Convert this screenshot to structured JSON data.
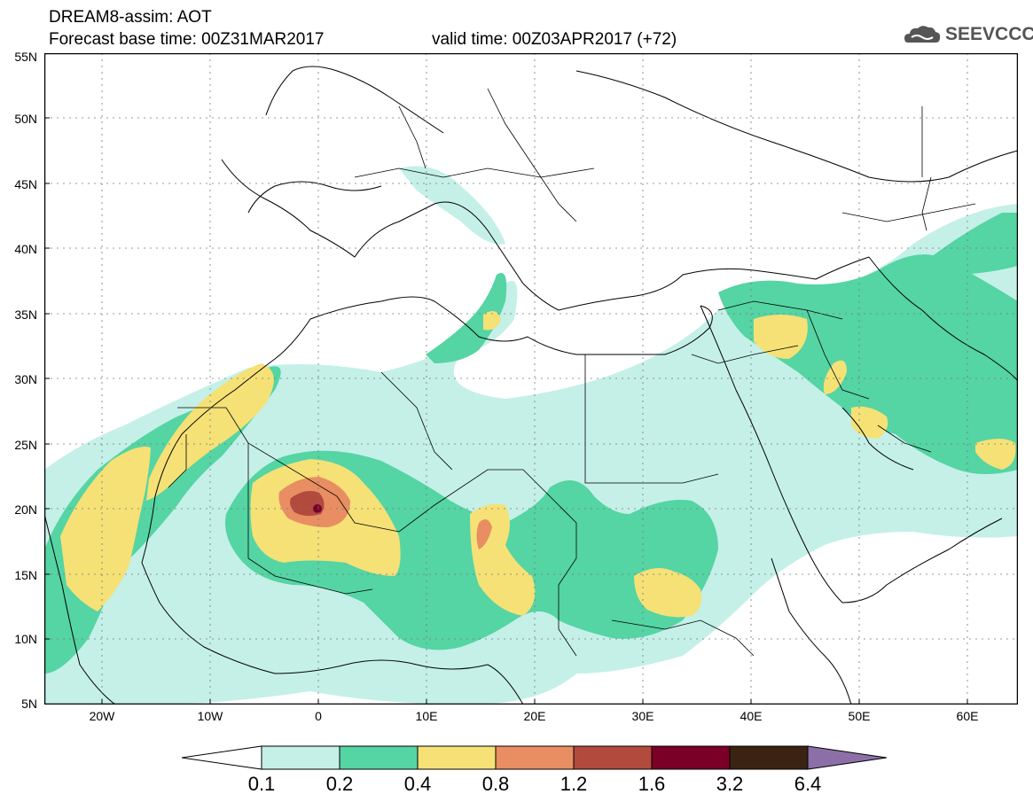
{
  "header": {
    "line1": "DREAM8-assim: AOT",
    "line2": "Forecast base time: 00Z31MAR2017",
    "valid": "valid time: 00Z03APR2017 (+72)",
    "logo_text": "SEEVCCC"
  },
  "map": {
    "lat_labels": [
      "55N",
      "50N",
      "45N",
      "40N",
      "35N",
      "30N",
      "25N",
      "20N",
      "15N",
      "10N",
      "5N"
    ],
    "lon_labels": [
      "20W",
      "10W",
      "0",
      "10E",
      "20E",
      "30E",
      "40E",
      "50E",
      "60E"
    ]
  },
  "colorbar": {
    "labels": [
      "0.1",
      "0.2",
      "0.4",
      "0.8",
      "1.2",
      "1.6",
      "3.2",
      "6.4"
    ],
    "colors": [
      "#ffffff",
      "#c4f0e8",
      "#55d4a4",
      "#f5e176",
      "#e88e62",
      "#b24a3e",
      "#7a0028",
      "#3b2314",
      "#8d6fa8"
    ]
  }
}
